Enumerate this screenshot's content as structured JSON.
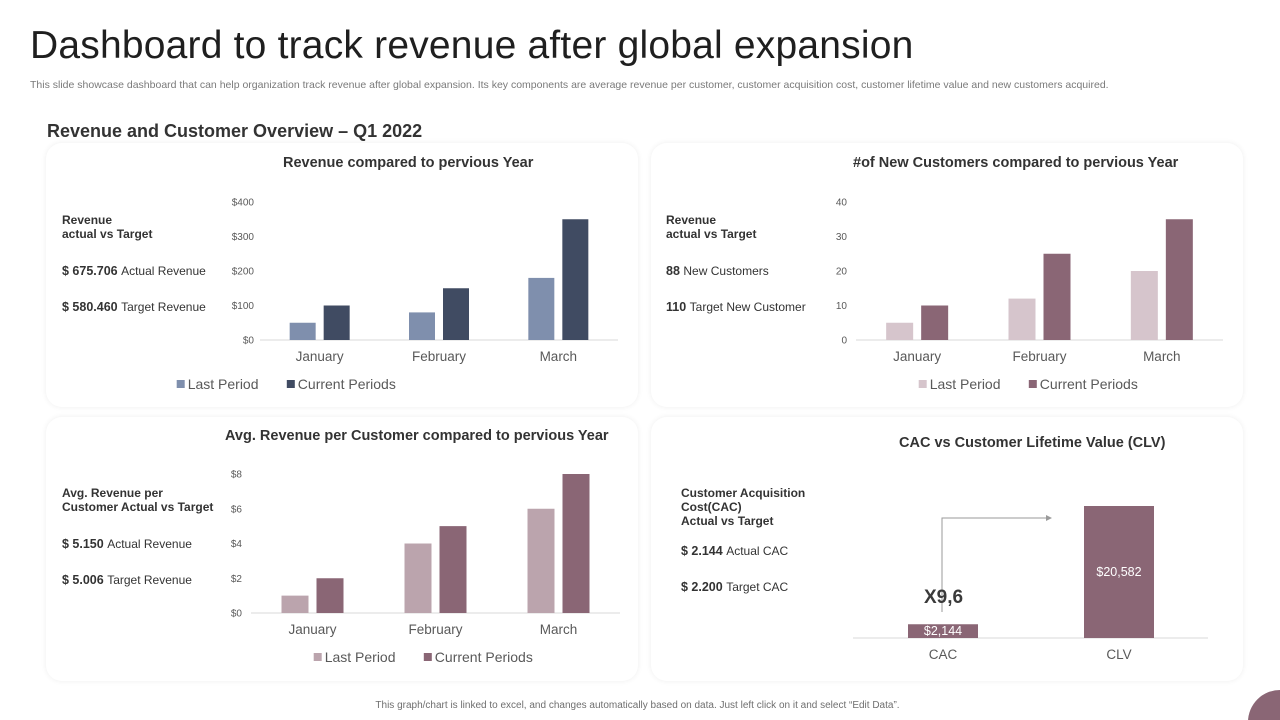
{
  "page": {
    "title": "Dashboard to track revenue after global expansion",
    "subtitle": "This slide showcase dashboard that can help organization track revenue after  global expansion. Its key components are average revenue per customer, customer acquisition cost, customer lifetime value and new customers acquired.",
    "section_title": "Revenue and Customer Overview – Q1 2022",
    "footer": "This graph/chart is linked to excel, and changes automatically based on data. Just left click on it and select “Edit Data”."
  },
  "panels": {
    "revenue": {
      "title": "Revenue compared to pervious Year",
      "kpi_heading": "Revenue\nactual vs Target",
      "kpi": [
        {
          "value": "$ 675.706",
          "label": "Actual Revenue"
        },
        {
          "value": "$ 580.460",
          "label": "Target Revenue"
        }
      ]
    },
    "customers": {
      "title": "#of New Customers compared to pervious Year",
      "kpi_heading": "Revenue\nactual vs Target",
      "kpi": [
        {
          "value": "88",
          "label": "New Customers"
        },
        {
          "value": "110",
          "label": "Target New Customer"
        }
      ]
    },
    "avg": {
      "title": "Avg. Revenue per Customer compared to pervious Year",
      "kpi_heading": "Avg. Revenue per\nCustomer Actual vs Target",
      "kpi": [
        {
          "value": "$ 5.150",
          "label": "Actual Revenue"
        },
        {
          "value": "$ 5.006",
          "label": "Target Revenue"
        }
      ]
    },
    "cac": {
      "title": "CAC vs Customer Lifetime Value (CLV)",
      "kpi_heading": "Customer Acquisition\nCost(CAC)\nActual vs Target",
      "kpi": [
        {
          "value": "$ 2.144",
          "label": "Actual CAC"
        },
        {
          "value": "$ 2.200",
          "label": "Target CAC"
        }
      ],
      "ratio_label": "X9,6"
    }
  },
  "chart_data": [
    {
      "id": "revenue",
      "type": "bar",
      "title": "Revenue compared to pervious Year",
      "categories": [
        "January",
        "February",
        "March"
      ],
      "series": [
        {
          "name": "Last Period",
          "values": [
            50,
            80,
            180
          ],
          "color": "#7f8fad"
        },
        {
          "name": "Current Periods",
          "values": [
            100,
            150,
            350
          ],
          "color": "#404b62"
        }
      ],
      "ylim": [
        0,
        400
      ],
      "yticks": [
        0,
        100,
        200,
        300,
        400
      ],
      "ytick_labels": [
        "$0",
        "$100",
        "$200",
        "$300",
        "$400"
      ],
      "legend": "bottom",
      "grid": false
    },
    {
      "id": "customers",
      "type": "bar",
      "title": "#of New Customers compared to pervious Year",
      "categories": [
        "January",
        "February",
        "March"
      ],
      "series": [
        {
          "name": "Last Period",
          "values": [
            5,
            12,
            20
          ],
          "color": "#d6c5cc"
        },
        {
          "name": "Current Periods",
          "values": [
            10,
            25,
            35
          ],
          "color": "#8a6675"
        }
      ],
      "ylim": [
        0,
        40
      ],
      "yticks": [
        0,
        10,
        20,
        30,
        40
      ],
      "ytick_labels": [
        "0",
        "10",
        "20",
        "30",
        "40"
      ],
      "legend": "bottom",
      "grid": false
    },
    {
      "id": "avg",
      "type": "bar",
      "title": "Avg. Revenue per Customer compared to pervious Year",
      "categories": [
        "January",
        "February",
        "March"
      ],
      "series": [
        {
          "name": "Last Period",
          "values": [
            1,
            4,
            6
          ],
          "color": "#bba4ad"
        },
        {
          "name": "Current Periods",
          "values": [
            2,
            5,
            8
          ],
          "color": "#8a6675"
        }
      ],
      "ylim": [
        0,
        8
      ],
      "yticks": [
        0,
        2,
        4,
        6,
        8
      ],
      "ytick_labels": [
        "$0",
        "$2",
        "$4",
        "$6",
        "$8"
      ],
      "legend": "bottom",
      "grid": false
    },
    {
      "id": "cac",
      "type": "bar",
      "title": "CAC vs Customer Lifetime Value (CLV)",
      "categories": [
        "CAC",
        "CLV"
      ],
      "values": [
        2144,
        20582
      ],
      "value_labels": [
        "$2,144",
        "$20,582"
      ],
      "color": "#8a6675",
      "ylim": [
        0,
        20582
      ],
      "annotation": "X9,6",
      "grid": false
    }
  ]
}
